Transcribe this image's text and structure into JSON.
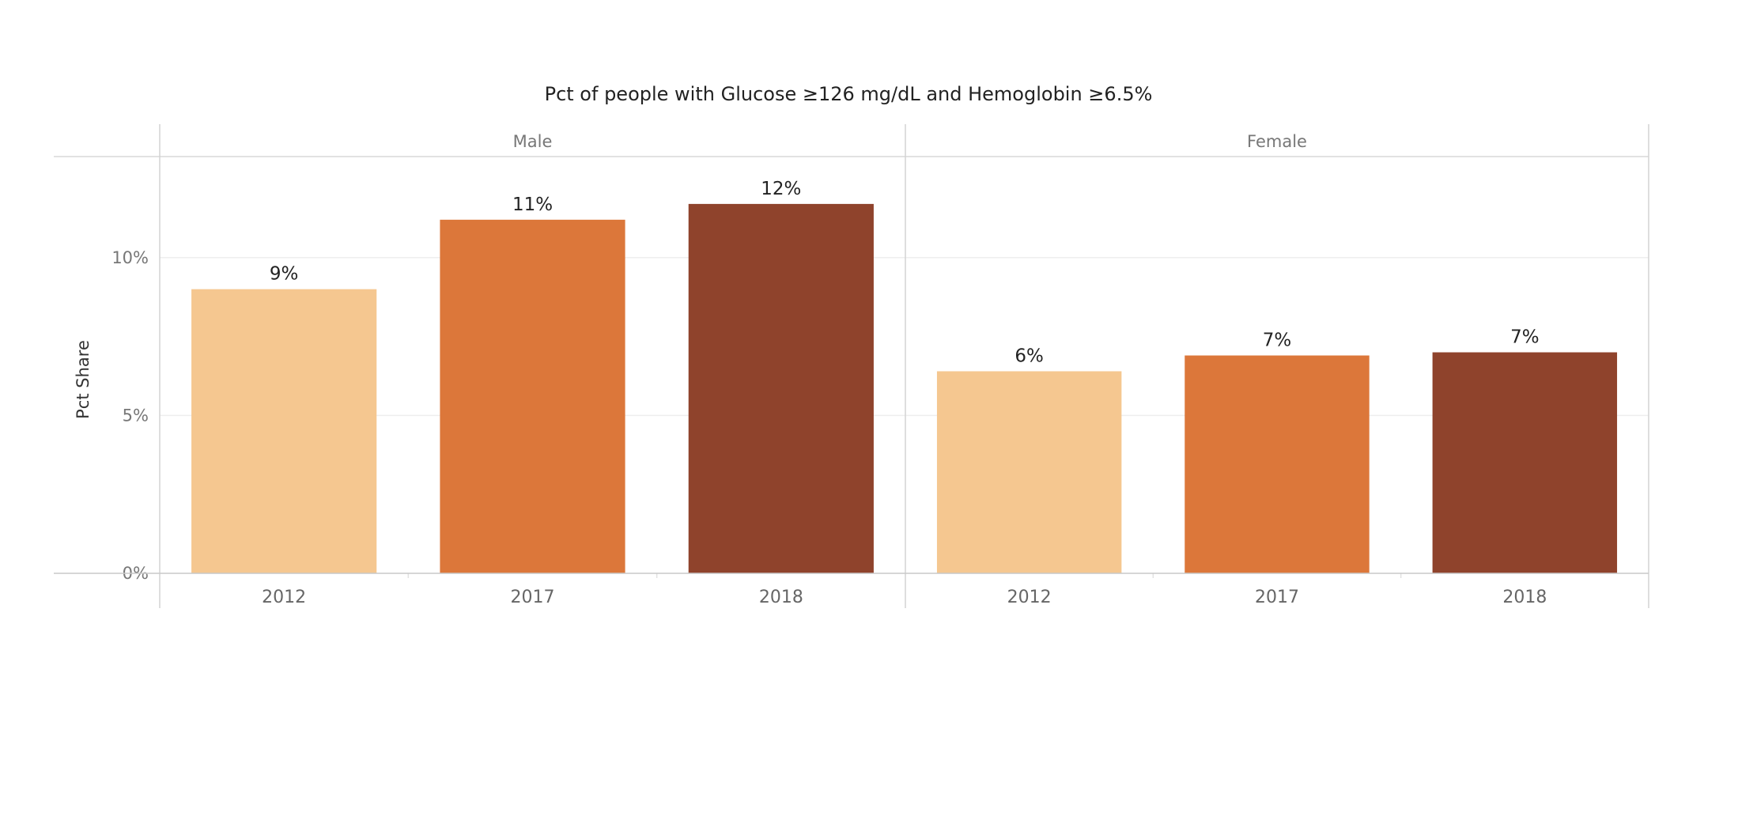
{
  "chart_data": {
    "type": "bar",
    "title": "Pct of people with Glucose ≥126 mg/dL and Hemoglobin ≥6.5%",
    "ylabel": "Pct Share",
    "ylim": [
      0,
      13.2
    ],
    "y_ticks": [
      {
        "value": 0,
        "label": "0%"
      },
      {
        "value": 5,
        "label": "5%"
      },
      {
        "value": 10,
        "label": "10%"
      }
    ],
    "grid": true,
    "categories": [
      "2012",
      "2017",
      "2018"
    ],
    "category_colors": [
      "#F5C790",
      "#DC773A",
      "#8F432C"
    ],
    "panels": [
      {
        "name": "Male",
        "values": [
          9.0,
          11.2,
          11.7
        ],
        "labels": [
          "9%",
          "11%",
          "12%"
        ]
      },
      {
        "name": "Female",
        "values": [
          6.4,
          6.9,
          7.0
        ],
        "labels": [
          "6%",
          "7%",
          "7%"
        ]
      }
    ]
  }
}
